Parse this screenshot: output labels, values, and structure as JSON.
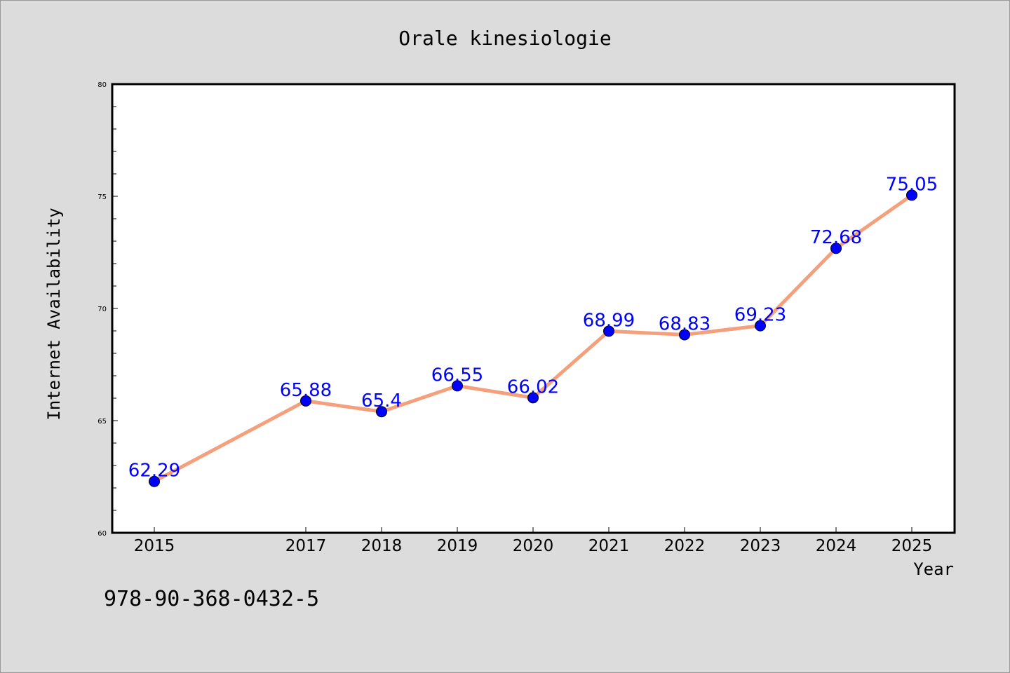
{
  "chart_data": {
    "type": "line",
    "title": "Orale kinesiologie",
    "xlabel": "Year",
    "ylabel": "Internet Availability",
    "categories": [
      "2015",
      "2017",
      "2018",
      "2019",
      "2020",
      "2021",
      "2022",
      "2023",
      "2024",
      "2025"
    ],
    "series": [
      {
        "values": [
          62.29,
          65.88,
          65.4,
          66.55,
          66.02,
          68.99,
          68.83,
          69.23,
          72.68,
          75.05
        ],
        "labels": [
          "62.29",
          "65.88",
          "65.4",
          "66.55",
          "66.02",
          "68.99",
          "68.83",
          "69.23",
          "72.68",
          "75.05"
        ],
        "line_color": "#f4a07c",
        "marker_color": "#0000ff"
      }
    ],
    "ylim": [
      60,
      80
    ],
    "yticks": [
      "60",
      "65",
      "70",
      "75",
      "80"
    ],
    "grid": false,
    "legend": "none"
  },
  "footer": {
    "isbn": "978-90-368-0432-5"
  }
}
